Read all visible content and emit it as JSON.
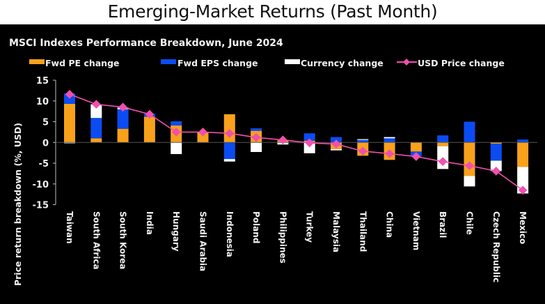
{
  "header": {
    "title": "Emerging-Market Returns (Past Month)"
  },
  "colors": {
    "panel_bg": "#000000",
    "fwd_pe": "#F9A11B",
    "fwd_eps": "#0B4CF2",
    "currency": "#FFFFFF",
    "usd_price": "#F14FAE",
    "text": "#F2F2F2"
  },
  "chart_data": {
    "type": "bar",
    "stacked": true,
    "title": "MSCI Indexes Performance Breakdown, June 2024",
    "xlabel": "",
    "ylabel": "Price return breakdown (%, USD)",
    "ylim": [
      -15,
      15
    ],
    "yticks": [
      15,
      10,
      5,
      0,
      -5,
      -10,
      -15
    ],
    "grid": false,
    "legend_position": "top",
    "categories": [
      "Taiwan",
      "South Africa",
      "South Korea",
      "India",
      "Hungary",
      "Saudi Arabia",
      "Indonesia",
      "Poland",
      "Philippines",
      "Turkey",
      "Malaysia",
      "Thailand",
      "China",
      "Vietnam",
      "Brazil",
      "Chile",
      "Czech Republic",
      "Mexico"
    ],
    "series": [
      {
        "name": "Fwd PE change",
        "type": "bar",
        "color_key": "fwd_pe",
        "values": [
          9.3,
          1.0,
          3.3,
          6.2,
          4.1,
          2.3,
          6.8,
          2.8,
          0.5,
          0.4,
          -1.6,
          -3.2,
          -4.2,
          -2.2,
          -0.9,
          -8.1,
          -0.3,
          -5.9
        ]
      },
      {
        "name": "Fwd EPS change",
        "type": "bar",
        "color_key": "fwd_eps",
        "values": [
          2.5,
          4.9,
          4.7,
          0.7,
          1.0,
          -0.1,
          -4.0,
          0.6,
          0.0,
          1.8,
          1.3,
          0.6,
          1.0,
          -1.2,
          1.7,
          5.0,
          -4.1,
          0.7
        ]
      },
      {
        "name": "Currency change",
        "type": "bar",
        "color_key": "currency",
        "values": [
          -0.2,
          3.3,
          0.4,
          0.0,
          -2.8,
          0.2,
          -0.6,
          -2.3,
          -0.5,
          -2.6,
          -0.3,
          0.2,
          0.3,
          0.0,
          -5.5,
          -2.5,
          -2.5,
          -6.4
        ]
      },
      {
        "name": "USD Price change",
        "type": "line",
        "color_key": "usd_price",
        "values": [
          11.6,
          9.2,
          8.5,
          6.8,
          2.5,
          2.5,
          2.2,
          1.2,
          0.6,
          -0.1,
          -0.4,
          -2.1,
          -2.7,
          -3.4,
          -4.6,
          -5.6,
          -6.9,
          -11.5
        ]
      }
    ]
  }
}
